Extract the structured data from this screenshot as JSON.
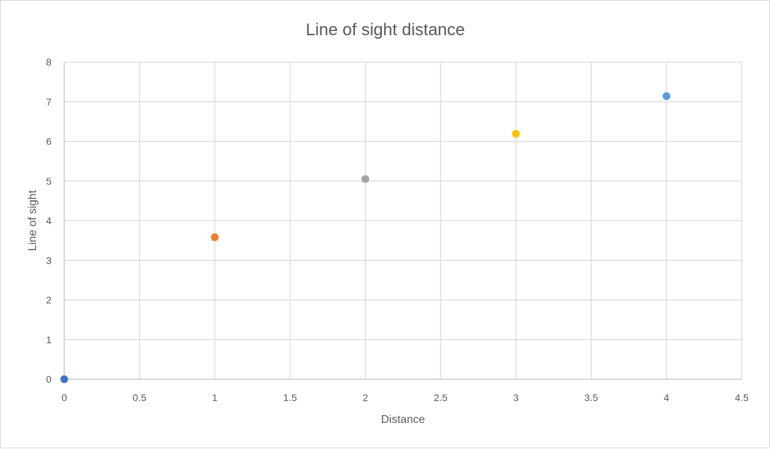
{
  "chart_data": {
    "type": "scatter",
    "title": "Line of sight distance",
    "xlabel": "Distance",
    "ylabel": "Line of sight",
    "xlim": [
      0,
      4.5
    ],
    "ylim": [
      0,
      8
    ],
    "x_ticks": [
      "0",
      "0.5",
      "1",
      "1.5",
      "2",
      "2.5",
      "3",
      "3.5",
      "4",
      "4.5"
    ],
    "y_ticks": [
      "0",
      "1",
      "2",
      "3",
      "4",
      "5",
      "6",
      "7",
      "8"
    ],
    "grid": true,
    "legend": "none",
    "points": [
      {
        "x": 0,
        "y": 0,
        "color": "#4472c4"
      },
      {
        "x": 1,
        "y": 3.58,
        "color": "#ed7d31"
      },
      {
        "x": 2,
        "y": 5.05,
        "color": "#a5a5a5"
      },
      {
        "x": 3,
        "y": 6.19,
        "color": "#ffc000"
      },
      {
        "x": 4,
        "y": 7.14,
        "color": "#5b9bd5"
      }
    ]
  }
}
